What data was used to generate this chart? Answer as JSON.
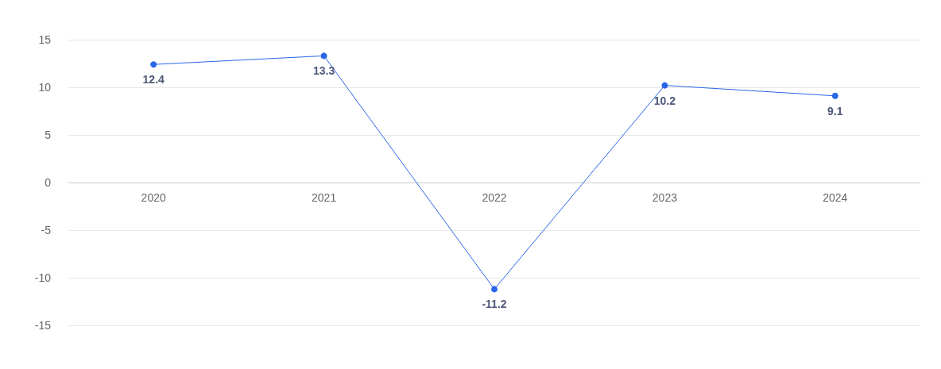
{
  "chart_data": {
    "type": "line",
    "categories": [
      "2020",
      "2021",
      "2022",
      "2023",
      "2024"
    ],
    "series": [
      {
        "color": "#2a66e8",
        "values": [
          12.4,
          13.3,
          -11.2,
          10.2,
          9.1
        ]
      }
    ],
    "ylim": [
      -15,
      15
    ],
    "yticks": [
      -15,
      -10,
      -5,
      0,
      5,
      10,
      15
    ],
    "grid": "y",
    "marker": "circle",
    "line_style": "solid",
    "data_labels": true
  }
}
